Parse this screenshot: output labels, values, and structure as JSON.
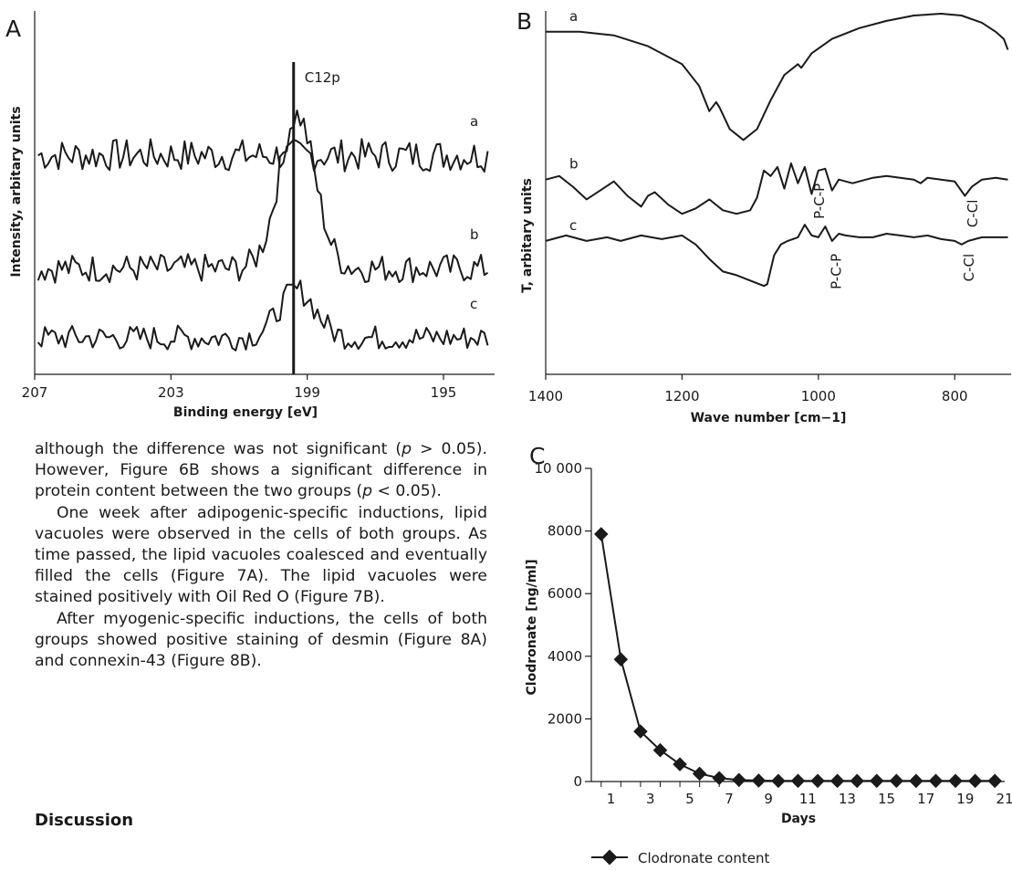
{
  "chart_data": [
    {
      "panel": "A",
      "type": "line",
      "xlabel": "Binding energy [eV]",
      "ylabel": "Intensity, arbitary units",
      "xlim": [
        207,
        193.5
      ],
      "x_ticks": [
        "207",
        "203",
        "199",
        "195"
      ],
      "marker": {
        "x": 199.4,
        "label": "C12p"
      },
      "series": [
        {
          "name": "a",
          "baseline": 6,
          "peak": 0,
          "noise": 0.9
        },
        {
          "name": "b",
          "baseline": 2.9,
          "peak": 4.2,
          "noise": 0.8
        },
        {
          "name": "c",
          "baseline": 1,
          "peak": 1.3,
          "noise": 0.7
        }
      ]
    },
    {
      "panel": "B",
      "type": "line",
      "xlabel": "Wave number [cm−1]",
      "ylabel": "T, arbitary units",
      "xlim": [
        1400,
        720
      ],
      "x_ticks": [
        "1400",
        "1200",
        "1000",
        "800"
      ],
      "series": [
        {
          "name": "a",
          "points": [
            [
              1400,
              9.5
            ],
            [
              1350,
              9.5
            ],
            [
              1300,
              9.4
            ],
            [
              1250,
              9.1
            ],
            [
              1200,
              8.6
            ],
            [
              1175,
              8.0
            ],
            [
              1160,
              7.3
            ],
            [
              1150,
              7.55
            ],
            [
              1145,
              7.4
            ],
            [
              1130,
              6.8
            ],
            [
              1110,
              6.5
            ],
            [
              1090,
              6.8
            ],
            [
              1070,
              7.6
            ],
            [
              1050,
              8.3
            ],
            [
              1030,
              8.6
            ],
            [
              1025,
              8.5
            ],
            [
              1010,
              8.9
            ],
            [
              980,
              9.3
            ],
            [
              940,
              9.6
            ],
            [
              900,
              9.8
            ],
            [
              860,
              9.95
            ],
            [
              820,
              10.0
            ],
            [
              790,
              9.95
            ],
            [
              760,
              9.75
            ],
            [
              740,
              9.5
            ],
            [
              728,
              9.3
            ],
            [
              722,
              9.0
            ]
          ]
        },
        {
          "name": "b",
          "points": [
            [
              1400,
              5.4
            ],
            [
              1380,
              5.5
            ],
            [
              1360,
              5.2
            ],
            [
              1340,
              4.85
            ],
            [
              1320,
              5.1
            ],
            [
              1300,
              5.35
            ],
            [
              1280,
              4.95
            ],
            [
              1260,
              4.65
            ],
            [
              1250,
              4.95
            ],
            [
              1240,
              5.05
            ],
            [
              1220,
              4.7
            ],
            [
              1200,
              4.45
            ],
            [
              1180,
              4.6
            ],
            [
              1160,
              4.85
            ],
            [
              1140,
              4.55
            ],
            [
              1120,
              4.45
            ],
            [
              1100,
              4.55
            ],
            [
              1090,
              4.9
            ],
            [
              1080,
              5.65
            ],
            [
              1070,
              5.5
            ],
            [
              1060,
              5.75
            ],
            [
              1050,
              5.15
            ],
            [
              1040,
              5.85
            ],
            [
              1030,
              5.3
            ],
            [
              1020,
              5.75
            ],
            [
              1010,
              5.0
            ],
            [
              1000,
              5.65
            ],
            [
              990,
              5.7
            ],
            [
              980,
              5.1
            ],
            [
              970,
              5.4
            ],
            [
              950,
              5.3
            ],
            [
              920,
              5.45
            ],
            [
              900,
              5.5
            ],
            [
              880,
              5.45
            ],
            [
              860,
              5.4
            ],
            [
              850,
              5.3
            ],
            [
              840,
              5.45
            ],
            [
              820,
              5.4
            ],
            [
              800,
              5.35
            ],
            [
              785,
              4.95
            ],
            [
              775,
              5.2
            ],
            [
              760,
              5.4
            ],
            [
              740,
              5.45
            ],
            [
              722,
              5.4
            ]
          ]
        },
        {
          "name": "c",
          "points": [
            [
              1400,
              3.7
            ],
            [
              1370,
              3.85
            ],
            [
              1340,
              3.7
            ],
            [
              1310,
              3.8
            ],
            [
              1290,
              3.7
            ],
            [
              1260,
              3.85
            ],
            [
              1230,
              3.75
            ],
            [
              1200,
              3.85
            ],
            [
              1180,
              3.6
            ],
            [
              1160,
              3.2
            ],
            [
              1140,
              2.85
            ],
            [
              1120,
              2.75
            ],
            [
              1100,
              2.6
            ],
            [
              1080,
              2.45
            ],
            [
              1075,
              2.5
            ],
            [
              1065,
              3.3
            ],
            [
              1055,
              3.6
            ],
            [
              1045,
              3.7
            ],
            [
              1030,
              3.8
            ],
            [
              1020,
              4.15
            ],
            [
              1010,
              3.85
            ],
            [
              1000,
              3.8
            ],
            [
              990,
              4.1
            ],
            [
              980,
              3.7
            ],
            [
              970,
              3.9
            ],
            [
              960,
              3.85
            ],
            [
              940,
              3.8
            ],
            [
              920,
              3.8
            ],
            [
              900,
              3.9
            ],
            [
              880,
              3.85
            ],
            [
              860,
              3.8
            ],
            [
              840,
              3.85
            ],
            [
              820,
              3.75
            ],
            [
              800,
              3.7
            ],
            [
              790,
              3.6
            ],
            [
              780,
              3.7
            ],
            [
              770,
              3.75
            ],
            [
              760,
              3.8
            ],
            [
              722,
              3.8
            ]
          ]
        }
      ],
      "annotations": [
        {
          "text": "P-C-P",
          "x": 1000,
          "series": "b"
        },
        {
          "text": "C-Cl",
          "x": 775,
          "series": "b"
        },
        {
          "text": "P-C-P",
          "x": 975,
          "series": "c"
        },
        {
          "text": "C-Cl",
          "x": 780,
          "series": "c"
        }
      ]
    },
    {
      "panel": "C",
      "type": "line",
      "xlabel": "Days",
      "ylabel": "Clodronate [ng/ml]",
      "ylim": [
        0,
        10000
      ],
      "xlim": [
        0,
        21
      ],
      "y_ticks": [
        "0",
        "2000",
        "4000",
        "6000",
        "8000",
        "10 000"
      ],
      "x_ticks": [
        "1",
        "3",
        "5",
        "7",
        "9",
        "11",
        "13",
        "15",
        "17",
        "19",
        "21"
      ],
      "legend": "Clodronate content",
      "series": [
        {
          "name": "Clodronate content",
          "x": [
            0.5,
            1.5,
            2.5,
            3.5,
            4.5,
            5.5,
            6.5,
            7.5,
            8.5,
            9.5,
            10.5,
            11.5,
            12.5,
            13.5,
            14.5,
            15.5,
            16.5,
            17.5,
            18.5,
            19.5,
            20.5
          ],
          "y": [
            7900,
            3900,
            1600,
            1000,
            550,
            250,
            110,
            50,
            30,
            20,
            20,
            20,
            20,
            20,
            20,
            20,
            20,
            20,
            20,
            20,
            20
          ]
        }
      ]
    }
  ],
  "panels": {
    "a": "A",
    "b": "B",
    "c": "C"
  },
  "text": {
    "p1_part1": "although the difference was not significant (",
    "p1_p1": "p",
    "p1_part2": " > 0.05). However, Figure 6B shows a significant difference in protein content between the two groups (",
    "p1_p2": "p",
    "p1_part3": " < 0.05).",
    "p2": "One week after adipogenic-specific inductions, lipid vacuoles were observed in the cells of both groups. As time passed, the lipid vacuoles coalesced and eventually filled the cells (Figure 7A). The lipid vacuoles were stained positively with Oil Red O (Figure 7B).",
    "p3": "After myogenic-specific inductions, the cells of both groups showed positive staining of desmin (Figure 8A) and connexin-43 (Figure 8B).",
    "heading": "Discussion"
  }
}
